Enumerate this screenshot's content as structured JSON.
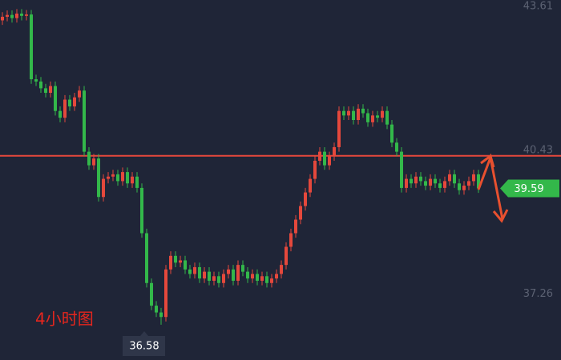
{
  "chart_data": {
    "type": "candlestick",
    "categories": [
      null,
      null,
      null,
      null,
      null,
      null,
      null,
      null,
      null,
      null,
      null,
      null,
      null,
      null,
      null,
      null,
      null,
      null,
      null,
      null,
      null,
      null,
      null,
      null,
      null,
      null,
      null,
      null,
      null,
      null,
      null,
      null,
      null,
      null,
      null,
      null,
      null,
      null,
      null,
      null,
      null,
      null,
      null,
      null,
      null,
      null,
      null,
      null,
      null,
      null,
      null,
      null,
      null,
      null,
      null,
      null,
      null,
      null,
      null,
      null,
      null,
      null,
      null,
      null,
      null,
      null,
      null,
      null,
      null,
      null,
      null,
      null,
      null,
      null,
      null,
      null,
      null,
      null,
      null,
      null,
      null,
      null,
      null,
      null,
      null,
      null,
      null,
      null,
      null,
      null,
      null,
      null,
      null,
      null,
      null,
      null,
      null,
      null,
      null,
      null
    ],
    "open": [
      43.3,
      43.38,
      43.42,
      43.35,
      43.45,
      43.4,
      43.43,
      42.0,
      41.95,
      41.8,
      41.7,
      41.85,
      41.3,
      41.15,
      41.55,
      41.4,
      41.6,
      41.75,
      40.4,
      40.1,
      40.25,
      39.4,
      39.8,
      39.85,
      39.9,
      39.75,
      39.95,
      39.7,
      39.85,
      39.6,
      38.6,
      37.5,
      37.0,
      36.85,
      36.75,
      37.8,
      38.1,
      37.95,
      38.0,
      37.8,
      37.7,
      37.85,
      37.6,
      37.75,
      37.55,
      37.65,
      37.5,
      37.7,
      37.8,
      37.55,
      37.9,
      37.75,
      37.6,
      37.7,
      37.55,
      37.65,
      37.5,
      37.6,
      37.7,
      37.9,
      38.3,
      38.6,
      38.9,
      39.2,
      39.5,
      39.8,
      40.2,
      40.4,
      40.1,
      40.3,
      40.5,
      41.3,
      41.2,
      41.3,
      41.1,
      41.35,
      41.25,
      41.05,
      41.2,
      41.15,
      41.3,
      41.0,
      40.6,
      40.4,
      39.6,
      39.8,
      39.7,
      39.85,
      39.75,
      39.65,
      39.8,
      39.7,
      39.6,
      39.75,
      39.9,
      39.7,
      39.55,
      39.65,
      39.75,
      39.9
    ],
    "high": [
      43.48,
      43.52,
      43.52,
      43.55,
      43.55,
      43.53,
      43.53,
      42.1,
      42.05,
      41.9,
      41.95,
      41.95,
      41.4,
      41.65,
      41.65,
      41.7,
      41.85,
      41.85,
      40.5,
      40.35,
      40.35,
      39.9,
      39.95,
      40.0,
      40.0,
      40.05,
      40.05,
      39.95,
      39.95,
      39.7,
      38.7,
      37.6,
      37.1,
      36.95,
      37.9,
      38.2,
      38.2,
      38.1,
      38.1,
      37.9,
      37.95,
      37.95,
      37.85,
      37.85,
      37.75,
      37.75,
      37.8,
      37.9,
      37.9,
      38.0,
      38.0,
      37.85,
      37.8,
      37.8,
      37.75,
      37.75,
      37.7,
      37.8,
      38.0,
      38.4,
      38.7,
      39.0,
      39.3,
      39.6,
      39.9,
      40.3,
      40.5,
      40.5,
      40.4,
      40.6,
      41.4,
      41.4,
      41.4,
      41.4,
      41.45,
      41.45,
      41.35,
      41.3,
      41.3,
      41.4,
      41.4,
      41.1,
      40.7,
      40.5,
      39.9,
      39.9,
      39.95,
      39.95,
      39.85,
      39.9,
      39.9,
      39.8,
      39.85,
      40.0,
      40.0,
      39.8,
      39.75,
      39.85,
      40.0,
      40.0
    ],
    "low": [
      43.2,
      43.28,
      43.25,
      43.25,
      43.3,
      43.3,
      41.9,
      41.85,
      41.7,
      41.6,
      41.6,
      41.2,
      41.05,
      41.05,
      41.3,
      41.3,
      41.5,
      40.3,
      40.0,
      40.0,
      39.3,
      39.3,
      39.7,
      39.75,
      39.65,
      39.65,
      39.6,
      39.6,
      39.5,
      38.5,
      37.4,
      36.9,
      36.75,
      36.58,
      36.65,
      37.7,
      37.85,
      37.85,
      37.7,
      37.6,
      37.6,
      37.5,
      37.5,
      37.45,
      37.45,
      37.4,
      37.4,
      37.6,
      37.45,
      37.45,
      37.65,
      37.5,
      37.5,
      37.45,
      37.45,
      37.4,
      37.4,
      37.5,
      37.6,
      37.8,
      38.2,
      38.5,
      38.8,
      39.1,
      39.4,
      39.7,
      40.1,
      40.0,
      40.0,
      40.2,
      40.4,
      41.1,
      41.1,
      41.0,
      41.0,
      41.15,
      40.95,
      40.95,
      41.05,
      41.05,
      40.9,
      40.5,
      40.3,
      39.5,
      39.5,
      39.6,
      39.6,
      39.65,
      39.55,
      39.55,
      39.6,
      39.5,
      39.5,
      39.65,
      39.6,
      39.45,
      39.45,
      39.55,
      39.65,
      39.49
    ],
    "close": [
      43.38,
      43.42,
      43.35,
      43.45,
      43.4,
      43.43,
      42.0,
      41.95,
      41.8,
      41.7,
      41.85,
      41.3,
      41.15,
      41.55,
      41.4,
      41.6,
      41.75,
      40.4,
      40.1,
      40.25,
      39.4,
      39.8,
      39.85,
      39.9,
      39.75,
      39.95,
      39.7,
      39.85,
      39.6,
      38.6,
      37.5,
      37.0,
      36.85,
      36.75,
      37.8,
      38.1,
      37.95,
      38.0,
      37.8,
      37.7,
      37.85,
      37.6,
      37.75,
      37.55,
      37.65,
      37.5,
      37.7,
      37.8,
      37.55,
      37.9,
      37.75,
      37.6,
      37.7,
      37.55,
      37.65,
      37.5,
      37.6,
      37.7,
      37.9,
      38.3,
      38.6,
      38.9,
      39.2,
      39.5,
      39.8,
      40.2,
      40.4,
      40.1,
      40.3,
      40.5,
      41.3,
      41.2,
      41.3,
      41.1,
      41.35,
      41.25,
      41.05,
      41.2,
      41.15,
      41.3,
      41.0,
      40.6,
      40.4,
      39.6,
      39.8,
      39.7,
      39.85,
      39.75,
      39.65,
      39.8,
      39.7,
      39.6,
      39.75,
      39.9,
      39.7,
      39.55,
      39.65,
      39.75,
      39.9,
      39.59
    ],
    "up_color": "#e5483c",
    "down_color": "#33b84a",
    "ylim": [
      35.8,
      43.75
    ],
    "yticks": [
      37.26,
      40.43,
      43.61
    ],
    "level_line": 40.31,
    "level_color": "#e5483c",
    "last_price": 39.59,
    "last_price_color": "#33b84a",
    "low_marker": 36.58,
    "annotation": "4小时图"
  }
}
